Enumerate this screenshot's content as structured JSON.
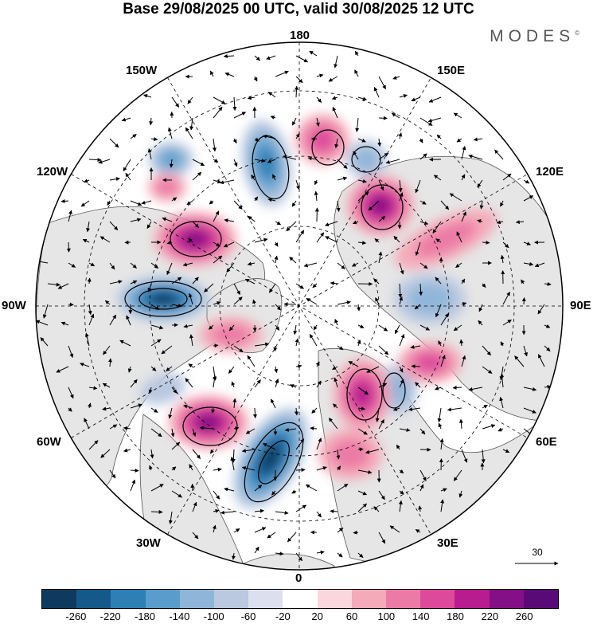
{
  "title": "Base 29/08/2025 00 UTC, valid 30/08/2025 12 UTC",
  "brand": "MODES",
  "brand_mark": "©",
  "longitude_labels": {
    "top": "180",
    "bottom": "0",
    "left": "90W",
    "right": "90E",
    "upper_left_1": "150W",
    "upper_left_2": "120W",
    "upper_right_1": "150E",
    "upper_right_2": "120E",
    "lower_left_1": "60W",
    "lower_left_2": "30W",
    "lower_right_1": "60E",
    "lower_right_2": "30E"
  },
  "reference_vector": {
    "label": "30"
  },
  "colorbar": {
    "ticks": [
      "-260",
      "-220",
      "-180",
      "-140",
      "-100",
      "-60",
      "-20",
      "20",
      "60",
      "100",
      "140",
      "180",
      "220",
      "260"
    ],
    "colors": [
      "#0d3a5e",
      "#14598a",
      "#2e7fb6",
      "#5a9ccb",
      "#8fb6d9",
      "#bac8e0",
      "#dcdfee",
      "#ffffff",
      "#fbd6dc",
      "#f4aab9",
      "#ec7aa6",
      "#dd4a9c",
      "#b81c8e",
      "#840f86",
      "#5a0a76"
    ]
  },
  "anomaly_centers": [
    {
      "sign": "negative",
      "strength": 240
    },
    {
      "sign": "negative",
      "strength": 230
    },
    {
      "sign": "negative",
      "strength": 180
    },
    {
      "sign": "negative",
      "strength": 120
    },
    {
      "sign": "negative",
      "strength": 90
    },
    {
      "sign": "negative",
      "strength": 80
    },
    {
      "sign": "negative",
      "strength": 60
    },
    {
      "sign": "negative",
      "strength": 70
    },
    {
      "sign": "positive",
      "strength": 220
    },
    {
      "sign": "positive",
      "strength": 200
    },
    {
      "sign": "positive",
      "strength": 190
    },
    {
      "sign": "positive",
      "strength": 170
    },
    {
      "sign": "positive",
      "strength": 130
    },
    {
      "sign": "positive",
      "strength": 110
    },
    {
      "sign": "positive",
      "strength": 100
    },
    {
      "sign": "positive",
      "strength": 90
    },
    {
      "sign": "positive",
      "strength": 80
    },
    {
      "sign": "positive",
      "strength": 70
    }
  ]
}
